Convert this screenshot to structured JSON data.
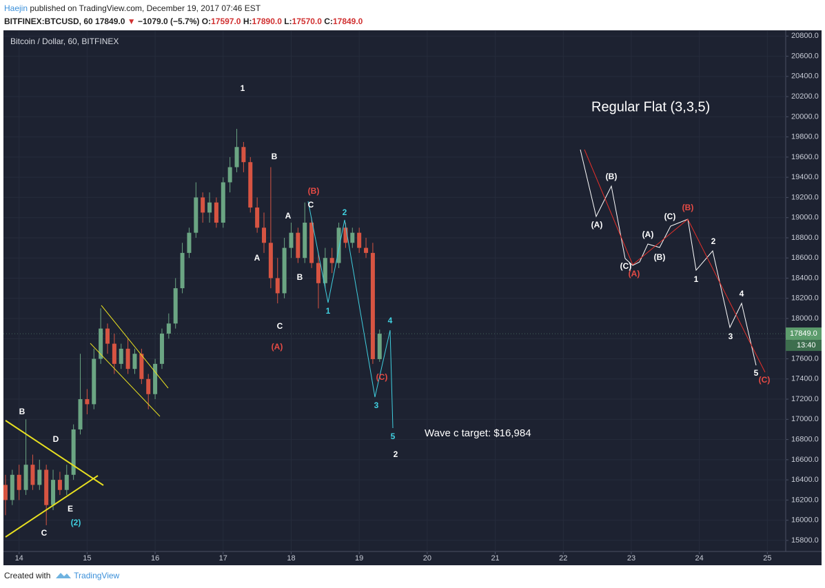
{
  "header": {
    "author": "Haejin",
    "published": "published on TradingView.com, December 19, 2017 07:46 EST",
    "symbol": "BITFINEX:BTCUSD, 60",
    "price": "17849.0",
    "arrow": "▼",
    "change": "−1079.0 (−5.7%)",
    "o_label": "O:",
    "o": "17597.0",
    "h_label": "H:",
    "h": "17890.0",
    "l_label": "L:",
    "l": "17570.0",
    "c_label": "C:",
    "c": "17849.0"
  },
  "footer": {
    "created": "Created with",
    "brand": "TradingView"
  },
  "chart_data": {
    "type": "candlestick",
    "title": "Bitcoin / Dollar, 60, BITFINEX",
    "up_color": "#6ba583",
    "down_color": "#d75442",
    "grid": true,
    "xlim": [
      13.77,
      25.27
    ],
    "ylim": [
      15690,
      20850
    ],
    "xticks": [
      14,
      15,
      16,
      17,
      18,
      19,
      20,
      21,
      22,
      23,
      24,
      25
    ],
    "yticks": [
      {
        "value": 15800,
        "label": "15800.0"
      },
      {
        "value": 16000,
        "label": "16000.0"
      },
      {
        "value": 16200,
        "label": "16200.0"
      },
      {
        "value": 16400,
        "label": "16400.0"
      },
      {
        "value": 16600,
        "label": "16600.0"
      },
      {
        "value": 16800,
        "label": "16800.0"
      },
      {
        "value": 17000,
        "label": "17000.0"
      },
      {
        "value": 17200,
        "label": "17200.0"
      },
      {
        "value": 17400,
        "label": "17400.0"
      },
      {
        "value": 17600,
        "label": "17600.0"
      },
      {
        "value": 17800,
        "label": "17800.0"
      },
      {
        "value": 18000,
        "label": "18000.0"
      },
      {
        "value": 18200,
        "label": "18200.0"
      },
      {
        "value": 18400,
        "label": "18400.0"
      },
      {
        "value": 18600,
        "label": "18600.0"
      },
      {
        "value": 18800,
        "label": "18800.0"
      },
      {
        "value": 19000,
        "label": "19000.0"
      },
      {
        "value": 19200,
        "label": "19200.0"
      },
      {
        "value": 19400,
        "label": "19400.0"
      },
      {
        "value": 19600,
        "label": "19600.0"
      },
      {
        "value": 19800,
        "label": "19800.0"
      },
      {
        "value": 20000,
        "label": "20000.0"
      },
      {
        "value": 20200,
        "label": "20200.0"
      },
      {
        "value": 20400,
        "label": "20400.0"
      },
      {
        "value": 20600,
        "label": "20600.0"
      },
      {
        "value": 20800,
        "label": "20800.0"
      }
    ],
    "x": [
      13.8,
      13.9,
      14.0,
      14.1,
      14.2,
      14.3,
      14.4,
      14.5,
      14.6,
      14.7,
      14.8,
      14.9,
      15.0,
      15.1,
      15.2,
      15.3,
      15.4,
      15.5,
      15.6,
      15.7,
      15.8,
      15.9,
      16.0,
      16.1,
      16.2,
      16.3,
      16.4,
      16.5,
      16.6,
      16.7,
      16.8,
      16.9,
      17.0,
      17.1,
      17.2,
      17.3,
      17.4,
      17.5,
      17.6,
      17.7,
      17.8,
      17.9,
      18.0,
      18.1,
      18.2,
      18.3,
      18.4,
      18.5,
      18.6,
      18.7,
      18.8,
      18.9,
      19.0,
      19.1,
      19.2,
      19.3
    ],
    "open": [
      16350,
      16200,
      16450,
      16300,
      16550,
      16350,
      16500,
      16150,
      16400,
      16300,
      16450,
      16900,
      17200,
      17150,
      17600,
      17900,
      17750,
      17550,
      17700,
      17500,
      17650,
      17400,
      17250,
      17550,
      17850,
      17950,
      18300,
      18650,
      18850,
      19200,
      19050,
      19150,
      18950,
      19350,
      19500,
      19700,
      19550,
      19100,
      18900,
      18750,
      18400,
      18250,
      18700,
      18850,
      18600,
      18950,
      18550,
      18350,
      18600,
      18550,
      18900,
      18750,
      18850,
      18700,
      18650,
      17597
    ],
    "high": [
      16450,
      16500,
      16550,
      17000,
      16650,
      16600,
      16550,
      16500,
      16480,
      16550,
      16950,
      17650,
      17300,
      17700,
      18100,
      17950,
      17850,
      17750,
      17800,
      17700,
      17700,
      17450,
      17600,
      17900,
      18050,
      18400,
      18750,
      18900,
      19350,
      19250,
      19250,
      19200,
      19400,
      19600,
      19880,
      19750,
      19600,
      19200,
      19050,
      19500,
      18600,
      18800,
      18950,
      18900,
      19150,
      19000,
      18650,
      18700,
      18700,
      18950,
      18950,
      18900,
      18900,
      18800,
      18750,
      17890
    ],
    "low": [
      16050,
      16150,
      16200,
      16250,
      16300,
      16300,
      15950,
      16100,
      16250,
      16250,
      16400,
      16850,
      17050,
      17100,
      17550,
      17650,
      17450,
      17500,
      17450,
      17450,
      17350,
      17100,
      17200,
      17500,
      17800,
      17900,
      18250,
      18600,
      18800,
      18950,
      18950,
      18900,
      18900,
      19250,
      19450,
      19450,
      19050,
      18850,
      18650,
      18300,
      18150,
      18200,
      18600,
      18550,
      18550,
      18500,
      18100,
      18300,
      18450,
      18500,
      18700,
      18700,
      18650,
      18600,
      17550,
      17570
    ],
    "close": [
      16200,
      16450,
      16300,
      16550,
      16350,
      16500,
      16150,
      16400,
      16300,
      16450,
      16900,
      17200,
      17150,
      17600,
      17900,
      17750,
      17550,
      17700,
      17500,
      17650,
      17400,
      17250,
      17550,
      17850,
      17950,
      18300,
      18650,
      18850,
      19200,
      19050,
      19150,
      18950,
      19350,
      19500,
      19700,
      19550,
      19100,
      18900,
      18750,
      18400,
      18250,
      18700,
      18850,
      18600,
      18950,
      18550,
      18350,
      18600,
      18550,
      18900,
      18750,
      18850,
      18700,
      18650,
      17597,
      17849
    ],
    "last_price": {
      "value": 17849,
      "label": "17849.0"
    },
    "countdown": "13:40",
    "notes": [
      "Regular Flat (3,3,5)",
      "Wave c target: $16,984"
    ],
    "annotations": [
      {
        "text": "B",
        "color": "#ffffff"
      },
      {
        "text": "D",
        "color": "#ffffff"
      },
      {
        "text": "E",
        "color": "#ffffff"
      },
      {
        "text": "C",
        "color": "#ffffff"
      },
      {
        "text": "1",
        "color": "#ffffff"
      },
      {
        "text": "B",
        "color": "#ffffff"
      },
      {
        "text": "A",
        "color": "#ffffff"
      },
      {
        "text": "A",
        "color": "#ffffff"
      },
      {
        "text": "B",
        "color": "#ffffff"
      },
      {
        "text": "C",
        "color": "#ffffff"
      },
      {
        "text": "C",
        "color": "#ffffff"
      },
      {
        "text": "2",
        "color": "#ffffff"
      },
      {
        "text": "(B)",
        "color": "#ffffff"
      },
      {
        "text": "(A)",
        "color": "#ffffff"
      },
      {
        "text": "(C)",
        "color": "#ffffff"
      },
      {
        "text": "(A)",
        "color": "#ffffff"
      },
      {
        "text": "(B)",
        "color": "#ffffff"
      },
      {
        "text": "(C)",
        "color": "#ffffff"
      },
      {
        "text": "2",
        "color": "#ffffff"
      },
      {
        "text": "1",
        "color": "#ffffff"
      },
      {
        "text": "4",
        "color": "#ffffff"
      },
      {
        "text": "3",
        "color": "#ffffff"
      },
      {
        "text": "5",
        "color": "#ffffff"
      },
      {
        "text": "(A)",
        "color": "#e84b45"
      },
      {
        "text": "(B)",
        "color": "#e84b45"
      },
      {
        "text": "(C)",
        "color": "#e84b45"
      },
      {
        "text": "(A)",
        "color": "#e84b45"
      },
      {
        "text": "(B)",
        "color": "#e84b45"
      },
      {
        "text": "(C)",
        "color": "#e84b45"
      },
      {
        "text": "(2)",
        "color": "#40d0e0"
      },
      {
        "text": "1",
        "color": "#40d0e0"
      },
      {
        "text": "2",
        "color": "#40d0e0"
      },
      {
        "text": "3",
        "color": "#40d0e0"
      },
      {
        "text": "4",
        "color": "#40d0e0"
      },
      {
        "text": "5",
        "color": "#40d0e0"
      }
    ]
  }
}
